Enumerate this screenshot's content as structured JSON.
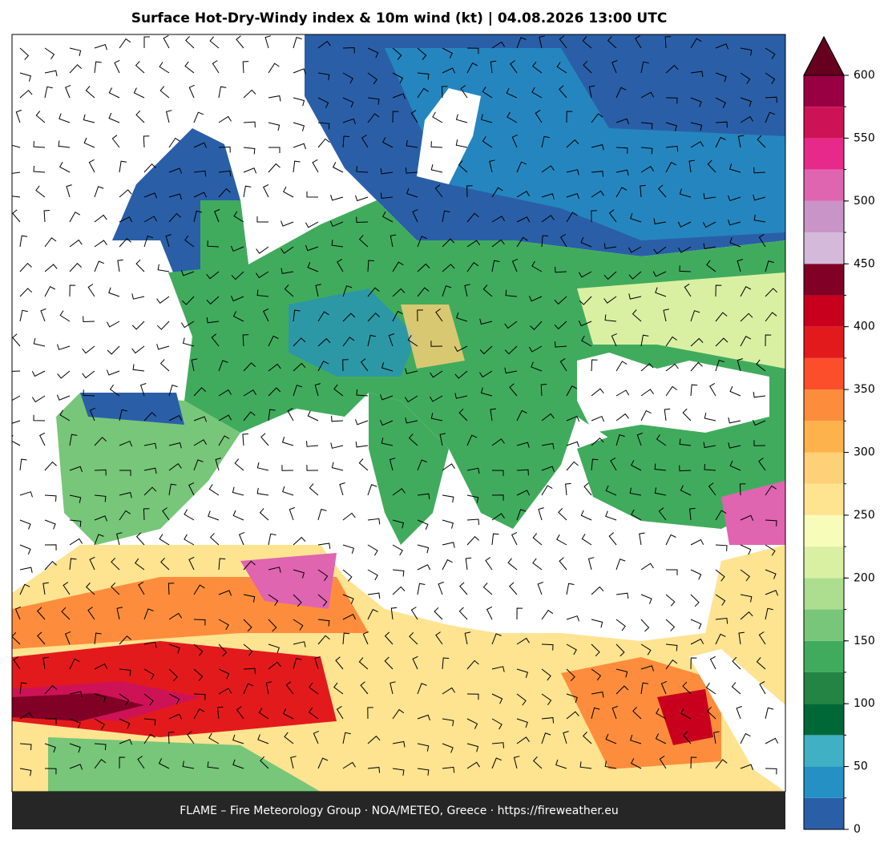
{
  "title": "Surface Hot-Dry-Windy index & 10m wind (kt)  |  04.08.2026 13:00 UTC",
  "footer": "FLAME – Fire Meteorology Group · NOA/METEO, Greece · https://fireweather.eu",
  "colorbar": {
    "lim": [
      0,
      600
    ],
    "ticks": [
      0,
      50,
      100,
      150,
      200,
      250,
      300,
      350,
      400,
      450,
      500,
      550,
      600
    ],
    "levels": [
      0,
      25,
      50,
      75,
      100,
      125,
      150,
      175,
      200,
      225,
      250,
      275,
      300,
      325,
      350,
      375,
      400,
      425,
      450,
      475,
      500,
      525,
      550,
      575,
      600
    ],
    "colors": [
      "#2a5fa8",
      "#2490c4",
      "#40b0c4",
      "#006837",
      "#238443",
      "#41ab5d",
      "#78c679",
      "#addd8e",
      "#d9f0a3",
      "#f7fcb9",
      "#fee391",
      "#fed078",
      "#feb24c",
      "#fd8d3c",
      "#fc4e2a",
      "#e31a1c",
      "#c8001e",
      "#800026",
      "#d4b9da",
      "#c994c7",
      "#df65b0",
      "#e7298a",
      "#ce1256",
      "#980043"
    ],
    "extend_color": "#67001f"
  }
}
